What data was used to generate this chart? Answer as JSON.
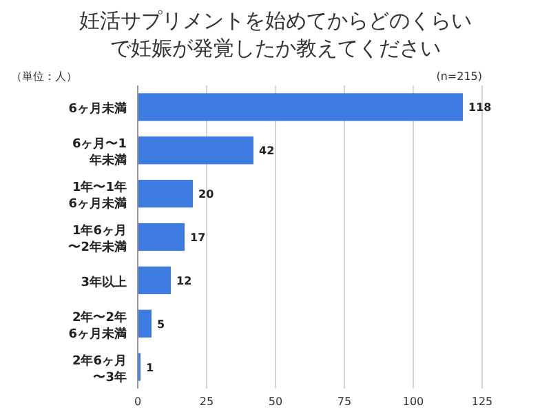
{
  "chart_data": {
    "type": "bar",
    "orientation": "horizontal",
    "title": "妊活サプリメントを始めてからどのくらいで妊娠が発覚したか教えてください",
    "categories": [
      "6ヶ月未満",
      "6ヶ月〜1年未満",
      "1年〜1年6ヶ月未満",
      "1年6ヶ月〜2年未満",
      "3年以上",
      "2年〜2年6ヶ月未満",
      "2年6ヶ月〜3年"
    ],
    "values": [
      118,
      42,
      20,
      17,
      12,
      5,
      1
    ],
    "color": "#3d7be0",
    "xlim": [
      0,
      125
    ],
    "xticks": [
      0,
      25,
      50,
      75,
      100,
      125
    ],
    "grid": "x",
    "data_labels": true,
    "annotations": [
      "（単位：人）",
      "(n=215)"
    ]
  }
}
